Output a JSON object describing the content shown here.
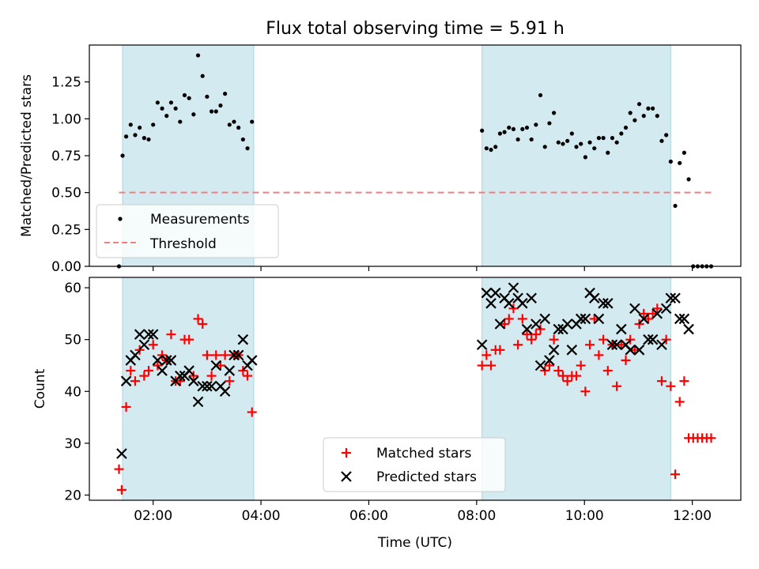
{
  "figure": {
    "title": "Flux total observing time = 5.91 h",
    "x_label": "Time (UTC)",
    "x_ticks": [
      "02:00",
      "04:00",
      "06:00",
      "08:00",
      "10:00",
      "12:00"
    ]
  },
  "chart_data": [
    {
      "type": "scatter",
      "panel": "top",
      "ylabel": "Matched/Predicted stars",
      "xlim": [
        "00:49",
        "12:54"
      ],
      "ylim": [
        0,
        1.5
      ],
      "y_ticks": [
        "0.00",
        "0.25",
        "0.50",
        "0.75",
        "1.00",
        "1.25"
      ],
      "shaded_regions": [
        [
          "01:26",
          "03:52"
        ],
        [
          "08:06",
          "11:36"
        ]
      ],
      "shade_color": "#d3eaf0",
      "legend": {
        "location": "lower-left",
        "entries": [
          "Measurements",
          "Threshold"
        ]
      },
      "series": [
        {
          "name": "Measurements",
          "kind": "points",
          "color": "#000000",
          "points": [
            [
              "01:22",
              0.0
            ],
            [
              "01:26",
              0.75
            ],
            [
              "01:30",
              0.88
            ],
            [
              "01:35",
              0.96
            ],
            [
              "01:40",
              0.89
            ],
            [
              "01:45",
              0.94
            ],
            [
              "01:50",
              0.87
            ],
            [
              "01:55",
              0.86
            ],
            [
              "02:00",
              0.96
            ],
            [
              "02:05",
              1.11
            ],
            [
              "02:10",
              1.07
            ],
            [
              "02:15",
              1.02
            ],
            [
              "02:20",
              1.11
            ],
            [
              "02:25",
              1.07
            ],
            [
              "02:30",
              0.98
            ],
            [
              "02:35",
              1.16
            ],
            [
              "02:40",
              1.14
            ],
            [
              "02:45",
              1.03
            ],
            [
              "02:50",
              1.43
            ],
            [
              "02:55",
              1.29
            ],
            [
              "03:00",
              1.15
            ],
            [
              "03:05",
              1.05
            ],
            [
              "03:10",
              1.05
            ],
            [
              "03:15",
              1.09
            ],
            [
              "03:20",
              1.17
            ],
            [
              "03:25",
              0.96
            ],
            [
              "03:30",
              0.98
            ],
            [
              "03:35",
              0.94
            ],
            [
              "03:40",
              0.86
            ],
            [
              "03:45",
              0.8
            ],
            [
              "03:50",
              0.98
            ],
            [
              "08:06",
              0.92
            ],
            [
              "08:11",
              0.8
            ],
            [
              "08:16",
              0.79
            ],
            [
              "08:21",
              0.81
            ],
            [
              "08:26",
              0.9
            ],
            [
              "08:31",
              0.91
            ],
            [
              "08:36",
              0.94
            ],
            [
              "08:41",
              0.93
            ],
            [
              "08:46",
              0.86
            ],
            [
              "08:51",
              0.93
            ],
            [
              "08:56",
              0.94
            ],
            [
              "09:01",
              0.86
            ],
            [
              "09:06",
              0.96
            ],
            [
              "09:11",
              1.16
            ],
            [
              "09:16",
              0.81
            ],
            [
              "09:21",
              0.97
            ],
            [
              "09:26",
              1.04
            ],
            [
              "09:31",
              0.84
            ],
            [
              "09:36",
              0.83
            ],
            [
              "09:41",
              0.85
            ],
            [
              "09:46",
              0.9
            ],
            [
              "09:51",
              0.81
            ],
            [
              "09:56",
              0.83
            ],
            [
              "10:01",
              0.74
            ],
            [
              "10:06",
              0.84
            ],
            [
              "10:11",
              0.8
            ],
            [
              "10:16",
              0.87
            ],
            [
              "10:21",
              0.87
            ],
            [
              "10:26",
              0.77
            ],
            [
              "10:31",
              0.87
            ],
            [
              "10:36",
              0.84
            ],
            [
              "10:41",
              0.9
            ],
            [
              "10:46",
              0.94
            ],
            [
              "10:51",
              1.04
            ],
            [
              "10:56",
              0.99
            ],
            [
              "11:01",
              1.1
            ],
            [
              "11:06",
              1.02
            ],
            [
              "11:11",
              1.07
            ],
            [
              "11:16",
              1.07
            ],
            [
              "11:21",
              1.02
            ],
            [
              "11:26",
              0.85
            ],
            [
              "11:31",
              0.89
            ],
            [
              "11:36",
              0.71
            ],
            [
              "11:41",
              0.41
            ],
            [
              "11:46",
              0.7
            ],
            [
              "11:51",
              0.77
            ],
            [
              "11:56",
              0.59
            ],
            [
              "12:01",
              0.0
            ],
            [
              "12:06",
              0.0
            ],
            [
              "12:11",
              0.0
            ],
            [
              "12:16",
              0.0
            ],
            [
              "12:21",
              0.0
            ]
          ]
        },
        {
          "name": "Threshold",
          "kind": "dashed-line",
          "color": "#f08080",
          "points": [
            [
              "01:22",
              0.5
            ],
            [
              "12:21",
              0.5
            ]
          ]
        }
      ]
    },
    {
      "type": "scatter",
      "panel": "bottom",
      "ylabel": "Count",
      "xlabel": "Time (UTC)",
      "xlim": [
        "00:49",
        "12:54"
      ],
      "ylim": [
        19,
        62
      ],
      "y_ticks": [
        "20",
        "30",
        "40",
        "50",
        "60"
      ],
      "shaded_regions": [
        [
          "01:26",
          "03:52"
        ],
        [
          "08:06",
          "11:36"
        ]
      ],
      "shade_color": "#d3eaf0",
      "legend": {
        "location": "lower-center",
        "entries": [
          "Matched stars",
          "Predicted stars"
        ]
      },
      "series": [
        {
          "name": "Matched stars",
          "marker": "plus",
          "color": "#ff0000",
          "points": [
            [
              "01:22",
              25
            ],
            [
              "01:25",
              21
            ],
            [
              "01:30",
              37
            ],
            [
              "01:35",
              44
            ],
            [
              "01:40",
              42
            ],
            [
              "01:45",
              48
            ],
            [
              "01:50",
              43
            ],
            [
              "01:55",
              44
            ],
            [
              "02:00",
              49
            ],
            [
              "02:05",
              45
            ],
            [
              "02:10",
              47
            ],
            [
              "02:15",
              46
            ],
            [
              "02:20",
              51
            ],
            [
              "02:25",
              42
            ],
            [
              "02:30",
              42
            ],
            [
              "02:35",
              50
            ],
            [
              "02:40",
              50
            ],
            [
              "02:45",
              43
            ],
            [
              "02:50",
              54
            ],
            [
              "02:55",
              53
            ],
            [
              "03:00",
              47
            ],
            [
              "03:05",
              43
            ],
            [
              "03:10",
              47
            ],
            [
              "03:15",
              45
            ],
            [
              "03:20",
              47
            ],
            [
              "03:25",
              42
            ],
            [
              "03:30",
              47
            ],
            [
              "03:35",
              47
            ],
            [
              "03:40",
              44
            ],
            [
              "03:45",
              43
            ],
            [
              "03:50",
              36
            ],
            [
              "08:06",
              45
            ],
            [
              "08:11",
              47
            ],
            [
              "08:16",
              45
            ],
            [
              "08:21",
              48
            ],
            [
              "08:26",
              48
            ],
            [
              "08:31",
              53
            ],
            [
              "08:36",
              54
            ],
            [
              "08:41",
              56
            ],
            [
              "08:46",
              49
            ],
            [
              "08:51",
              54
            ],
            [
              "08:56",
              51
            ],
            [
              "09:01",
              50
            ],
            [
              "09:06",
              51
            ],
            [
              "09:11",
              52
            ],
            [
              "09:16",
              44
            ],
            [
              "09:21",
              45
            ],
            [
              "09:26",
              50
            ],
            [
              "09:31",
              44
            ],
            [
              "09:36",
              43
            ],
            [
              "09:41",
              42
            ],
            [
              "09:46",
              43
            ],
            [
              "09:51",
              43
            ],
            [
              "09:56",
              45
            ],
            [
              "10:01",
              40
            ],
            [
              "10:06",
              49
            ],
            [
              "10:11",
              54
            ],
            [
              "10:16",
              47
            ],
            [
              "10:21",
              50
            ],
            [
              "10:26",
              44
            ],
            [
              "10:31",
              49
            ],
            [
              "10:36",
              41
            ],
            [
              "10:41",
              49
            ],
            [
              "10:46",
              46
            ],
            [
              "10:51",
              50
            ],
            [
              "10:56",
              48
            ],
            [
              "11:01",
              53
            ],
            [
              "11:06",
              55
            ],
            [
              "11:11",
              54
            ],
            [
              "11:16",
              55
            ],
            [
              "11:21",
              56
            ],
            [
              "11:26",
              42
            ],
            [
              "11:31",
              50
            ],
            [
              "11:36",
              41
            ],
            [
              "11:41",
              24
            ],
            [
              "11:46",
              38
            ],
            [
              "11:51",
              42
            ],
            [
              "11:56",
              31
            ],
            [
              "12:01",
              31
            ],
            [
              "12:06",
              31
            ],
            [
              "12:11",
              31
            ],
            [
              "12:16",
              31
            ],
            [
              "12:21",
              31
            ]
          ]
        },
        {
          "name": "Predicted stars",
          "marker": "x",
          "color": "#000000",
          "points": [
            [
              "01:25",
              28
            ],
            [
              "01:30",
              42
            ],
            [
              "01:35",
              46
            ],
            [
              "01:40",
              47
            ],
            [
              "01:45",
              51
            ],
            [
              "01:50",
              49
            ],
            [
              "01:55",
              51
            ],
            [
              "02:00",
              51
            ],
            [
              "02:05",
              46
            ],
            [
              "02:10",
              44
            ],
            [
              "02:15",
              46
            ],
            [
              "02:20",
              46
            ],
            [
              "02:25",
              42
            ],
            [
              "02:30",
              43
            ],
            [
              "02:35",
              43
            ],
            [
              "02:40",
              44
            ],
            [
              "02:45",
              42
            ],
            [
              "02:50",
              38
            ],
            [
              "02:55",
              41
            ],
            [
              "03:00",
              41
            ],
            [
              "03:05",
              41
            ],
            [
              "03:10",
              45
            ],
            [
              "03:15",
              41
            ],
            [
              "03:20",
              40
            ],
            [
              "03:25",
              44
            ],
            [
              "03:30",
              47
            ],
            [
              "03:35",
              47
            ],
            [
              "03:40",
              50
            ],
            [
              "03:45",
              45
            ],
            [
              "03:50",
              46
            ],
            [
              "08:06",
              49
            ],
            [
              "08:11",
              59
            ],
            [
              "08:16",
              57
            ],
            [
              "08:21",
              59
            ],
            [
              "08:26",
              53
            ],
            [
              "08:31",
              58
            ],
            [
              "08:36",
              57
            ],
            [
              "08:41",
              60
            ],
            [
              "08:46",
              58
            ],
            [
              "08:51",
              57
            ],
            [
              "08:56",
              52
            ],
            [
              "09:01",
              58
            ],
            [
              "09:06",
              53
            ],
            [
              "09:11",
              45
            ],
            [
              "09:16",
              54
            ],
            [
              "09:21",
              46
            ],
            [
              "09:26",
              48
            ],
            [
              "09:31",
              52
            ],
            [
              "09:36",
              52
            ],
            [
              "09:41",
              53
            ],
            [
              "09:46",
              48
            ],
            [
              "09:51",
              53
            ],
            [
              "09:56",
              54
            ],
            [
              "10:01",
              54
            ],
            [
              "10:06",
              59
            ],
            [
              "10:11",
              58
            ],
            [
              "10:16",
              54
            ],
            [
              "10:21",
              57
            ],
            [
              "10:26",
              57
            ],
            [
              "10:31",
              49
            ],
            [
              "10:36",
              49
            ],
            [
              "10:41",
              52
            ],
            [
              "10:46",
              49
            ],
            [
              "10:51",
              48
            ],
            [
              "10:56",
              56
            ],
            [
              "11:01",
              48
            ],
            [
              "11:06",
              54
            ],
            [
              "11:11",
              50
            ],
            [
              "11:16",
              50
            ],
            [
              "11:21",
              55
            ],
            [
              "11:26",
              49
            ],
            [
              "11:31",
              56
            ],
            [
              "11:36",
              58
            ],
            [
              "11:41",
              58
            ],
            [
              "11:46",
              54
            ],
            [
              "11:51",
              54
            ],
            [
              "11:56",
              52
            ]
          ]
        }
      ]
    }
  ]
}
